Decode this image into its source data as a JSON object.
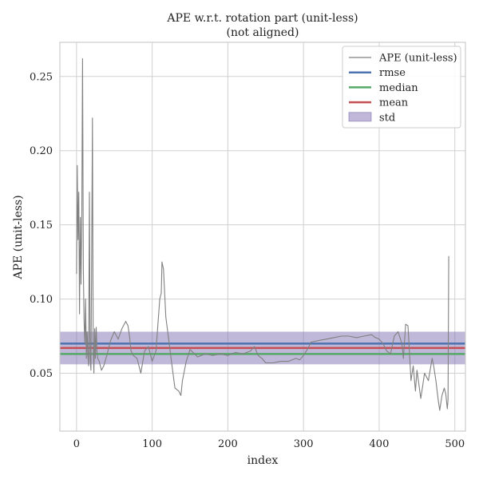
{
  "chart_data": {
    "type": "line",
    "title": "APE w.r.t. rotation part (unit-less)",
    "subtitle": "(not aligned)",
    "xlabel": "index",
    "ylabel": "APE (unit-less)",
    "xlim": [
      -22,
      514
    ],
    "ylim": [
      0.011,
      0.273
    ],
    "xticks": [
      0,
      100,
      200,
      300,
      400,
      500
    ],
    "xtick_labels": [
      "0",
      "100",
      "200",
      "300",
      "400",
      "500"
    ],
    "yticks": [
      0.05,
      0.1,
      0.15,
      0.2,
      0.25
    ],
    "ytick_labels": [
      "0.05",
      "0.10",
      "0.15",
      "0.20",
      "0.25"
    ],
    "grid": true,
    "legend_position": "top-right",
    "stats": {
      "rmse": 0.07,
      "median": 0.063,
      "mean": 0.067,
      "std_band": [
        0.056,
        0.078
      ]
    },
    "legend": [
      {
        "key": "ape",
        "label": "APE (unit-less)",
        "color": "#808080",
        "kind": "thin-line"
      },
      {
        "key": "rmse",
        "label": "rmse",
        "color": "#4c72b0",
        "kind": "line"
      },
      {
        "key": "median",
        "label": "median",
        "color": "#55a868",
        "kind": "line"
      },
      {
        "key": "mean",
        "label": "mean",
        "color": "#c44e52",
        "kind": "line"
      },
      {
        "key": "std",
        "label": "std",
        "color": "#8172b2",
        "kind": "patch"
      }
    ],
    "series": [
      {
        "name": "APE (unit-less)",
        "color": "#808080",
        "x": [
          0,
          1,
          2,
          3,
          4,
          5,
          6,
          7,
          8,
          9,
          10,
          11,
          12,
          13,
          14,
          15,
          16,
          17,
          18,
          19,
          20,
          21,
          22,
          23,
          24,
          25,
          26,
          27,
          28,
          30,
          33,
          36,
          40,
          45,
          50,
          55,
          60,
          65,
          68,
          70,
          72,
          75,
          80,
          85,
          90,
          95,
          100,
          105,
          110,
          112,
          113,
          115,
          118,
          120,
          125,
          130,
          135,
          138,
          140,
          145,
          150,
          160,
          170,
          180,
          190,
          200,
          210,
          220,
          230,
          235,
          240,
          245,
          250,
          260,
          270,
          280,
          290,
          295,
          300,
          305,
          310,
          320,
          330,
          340,
          350,
          360,
          370,
          380,
          390,
          395,
          400,
          405,
          410,
          415,
          420,
          425,
          430,
          432,
          435,
          438,
          440,
          442,
          445,
          448,
          450,
          455,
          460,
          465,
          470,
          472,
          475,
          478,
          480,
          483,
          486,
          488,
          490,
          491,
          492
        ],
        "y": [
          0.117,
          0.19,
          0.14,
          0.172,
          0.09,
          0.155,
          0.11,
          0.157,
          0.262,
          0.12,
          0.085,
          0.07,
          0.1,
          0.06,
          0.078,
          0.062,
          0.055,
          0.172,
          0.06,
          0.052,
          0.125,
          0.222,
          0.07,
          0.05,
          0.08,
          0.06,
          0.081,
          0.065,
          0.06,
          0.058,
          0.052,
          0.055,
          0.062,
          0.072,
          0.078,
          0.073,
          0.08,
          0.085,
          0.082,
          0.075,
          0.065,
          0.062,
          0.06,
          0.05,
          0.065,
          0.068,
          0.058,
          0.065,
          0.1,
          0.104,
          0.125,
          0.12,
          0.088,
          0.08,
          0.06,
          0.04,
          0.038,
          0.035,
          0.045,
          0.058,
          0.066,
          0.061,
          0.063,
          0.062,
          0.063,
          0.062,
          0.064,
          0.063,
          0.065,
          0.068,
          0.062,
          0.06,
          0.057,
          0.057,
          0.058,
          0.058,
          0.06,
          0.059,
          0.062,
          0.066,
          0.071,
          0.072,
          0.073,
          0.074,
          0.075,
          0.075,
          0.074,
          0.075,
          0.076,
          0.074,
          0.073,
          0.07,
          0.065,
          0.063,
          0.075,
          0.078,
          0.07,
          0.06,
          0.083,
          0.082,
          0.064,
          0.045,
          0.055,
          0.038,
          0.052,
          0.033,
          0.05,
          0.045,
          0.06,
          0.055,
          0.045,
          0.032,
          0.025,
          0.035,
          0.04,
          0.036,
          0.026,
          0.032,
          0.129
        ]
      }
    ]
  }
}
